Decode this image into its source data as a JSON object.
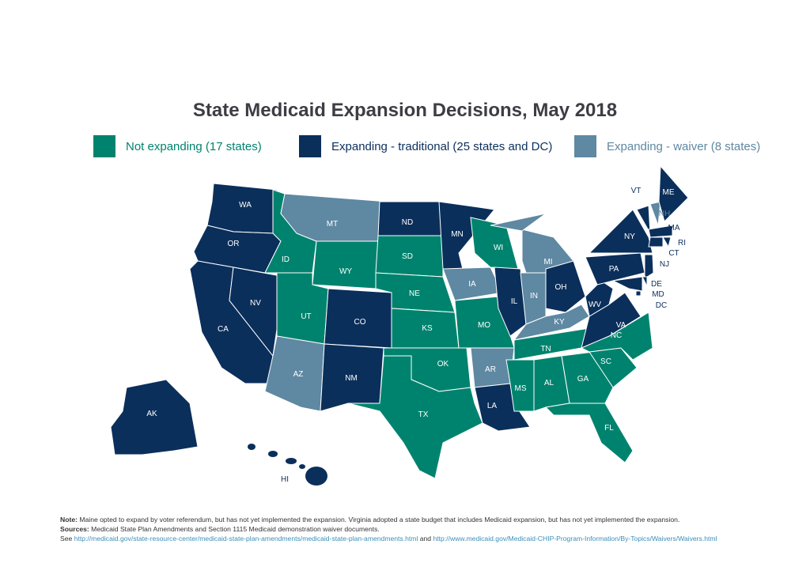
{
  "title": "State Medicaid Expansion Decisions, May 2018",
  "colors": {
    "not_expanding": "#00836e",
    "traditional": "#0b2f5b",
    "waiver": "#5f88a2"
  },
  "legend": [
    {
      "key": "not_expanding",
      "label": "Not expanding (17 states)"
    },
    {
      "key": "traditional",
      "label": "Expanding - traditional (25 states and DC)"
    },
    {
      "key": "waiver",
      "label": "Expanding - waiver (8 states)"
    }
  ],
  "states": [
    {
      "abbr": "WA",
      "status": "traditional"
    },
    {
      "abbr": "OR",
      "status": "traditional"
    },
    {
      "abbr": "CA",
      "status": "traditional"
    },
    {
      "abbr": "NV",
      "status": "traditional"
    },
    {
      "abbr": "ID",
      "status": "not_expanding"
    },
    {
      "abbr": "MT",
      "status": "waiver"
    },
    {
      "abbr": "WY",
      "status": "not_expanding"
    },
    {
      "abbr": "UT",
      "status": "not_expanding"
    },
    {
      "abbr": "CO",
      "status": "traditional"
    },
    {
      "abbr": "AZ",
      "status": "waiver"
    },
    {
      "abbr": "NM",
      "status": "traditional"
    },
    {
      "abbr": "ND",
      "status": "traditional"
    },
    {
      "abbr": "SD",
      "status": "not_expanding"
    },
    {
      "abbr": "NE",
      "status": "not_expanding"
    },
    {
      "abbr": "KS",
      "status": "not_expanding"
    },
    {
      "abbr": "OK",
      "status": "not_expanding"
    },
    {
      "abbr": "TX",
      "status": "not_expanding"
    },
    {
      "abbr": "MN",
      "status": "traditional"
    },
    {
      "abbr": "IA",
      "status": "waiver"
    },
    {
      "abbr": "MO",
      "status": "not_expanding"
    },
    {
      "abbr": "AR",
      "status": "waiver"
    },
    {
      "abbr": "LA",
      "status": "traditional"
    },
    {
      "abbr": "WI",
      "status": "not_expanding"
    },
    {
      "abbr": "IL",
      "status": "traditional"
    },
    {
      "abbr": "MI",
      "status": "waiver"
    },
    {
      "abbr": "IN",
      "status": "waiver"
    },
    {
      "abbr": "OH",
      "status": "traditional"
    },
    {
      "abbr": "KY",
      "status": "waiver"
    },
    {
      "abbr": "TN",
      "status": "not_expanding"
    },
    {
      "abbr": "MS",
      "status": "not_expanding"
    },
    {
      "abbr": "AL",
      "status": "not_expanding"
    },
    {
      "abbr": "GA",
      "status": "not_expanding"
    },
    {
      "abbr": "FL",
      "status": "not_expanding"
    },
    {
      "abbr": "SC",
      "status": "not_expanding"
    },
    {
      "abbr": "NC",
      "status": "not_expanding"
    },
    {
      "abbr": "VA",
      "status": "traditional"
    },
    {
      "abbr": "WV",
      "status": "traditional"
    },
    {
      "abbr": "PA",
      "status": "traditional"
    },
    {
      "abbr": "NY",
      "status": "traditional"
    },
    {
      "abbr": "VT",
      "status": "traditional"
    },
    {
      "abbr": "NH",
      "status": "waiver"
    },
    {
      "abbr": "ME",
      "status": "traditional"
    },
    {
      "abbr": "MA",
      "status": "traditional"
    },
    {
      "abbr": "RI",
      "status": "traditional"
    },
    {
      "abbr": "CT",
      "status": "traditional"
    },
    {
      "abbr": "NJ",
      "status": "traditional"
    },
    {
      "abbr": "DE",
      "status": "traditional"
    },
    {
      "abbr": "MD",
      "status": "traditional"
    },
    {
      "abbr": "DC",
      "status": "traditional"
    },
    {
      "abbr": "AK",
      "status": "traditional"
    },
    {
      "abbr": "HI",
      "status": "traditional"
    }
  ],
  "notes": {
    "note_label": "Note:",
    "note_text": " Maine opted to expand by voter referendum, but has not yet implemented the expansion. Virginia adopted a state budget that includes Medicaid expansion, but has not yet implemented the expansion.",
    "sources_label": "Sources:",
    "sources_text": " Medicaid State Plan Amendments and Section 1115 Medicaid demonstration waiver documents.",
    "see": "See ",
    "link1": "http://medicaid.gov/state-resource-center/medicaid-state-plan-amendments/medicaid-state-plan-amendments.html",
    "and": " and ",
    "link2": "http://www.medicaid.gov/Medicaid-CHIP-Program-Information/By-Topics/Waivers/Waivers.html"
  }
}
